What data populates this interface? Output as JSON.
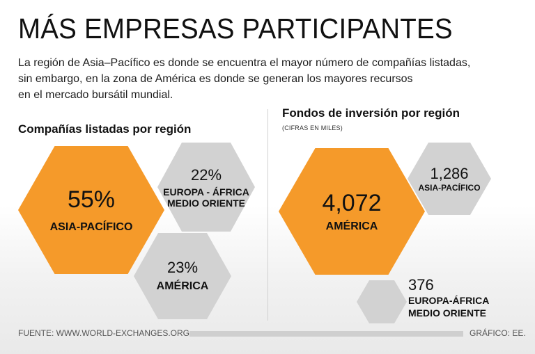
{
  "title": "MÁS EMPRESAS PARTICIPANTES",
  "intro": [
    "La región de Asia–Pacífico es donde se encuentra el mayor número de compañías listadas,",
    "sin embargo, en la zona de América es donde se generan los mayores recursos",
    "en el mercado bursátil mundial."
  ],
  "footer": {
    "source": "FUENTE: WWW.WORLD-EXCHANGES.ORG",
    "credit": "GRÁFICO: EE."
  },
  "colors": {
    "accent": "#f59a2a",
    "neutral": "#d2d2d2"
  },
  "chart_data": [
    {
      "type": "pie",
      "title": "Compañías listadas por región",
      "unit": "%",
      "categories": [
        "ASIA-PACÍFICO",
        "EUROPA - ÁFRICA MEDIO ORIENTE",
        "AMÉRICA"
      ],
      "values": [
        55,
        22,
        23
      ],
      "value_labels": [
        "55%",
        "22%",
        "23%"
      ],
      "highlight": "ASIA-PACÍFICO",
      "label_lines": {
        "asia": [
          "ASIA-PACÍFICO"
        ],
        "europa": [
          "EUROPA - ÁFRICA",
          "MEDIO ORIENTE"
        ],
        "america": [
          "AMÉRICA"
        ]
      }
    },
    {
      "type": "bar",
      "title": "Fondos de inversión por región",
      "subtitle": "(CIFRAS EN MILES)",
      "categories": [
        "AMÉRICA",
        "ASIA-PACÍFICO",
        "EUROPA-ÁFRICA MEDIO ORIENTE"
      ],
      "values": [
        4072,
        1286,
        376
      ],
      "value_labels": [
        "4,072",
        "1,286",
        "376"
      ],
      "highlight": "AMÉRICA",
      "label_lines": {
        "america": [
          "AMÉRICA"
        ],
        "asia": [
          "ASIA-PACÍFICO"
        ],
        "europa": [
          "EUROPA-ÁFRICA",
          "MEDIO ORIENTE"
        ]
      }
    }
  ]
}
